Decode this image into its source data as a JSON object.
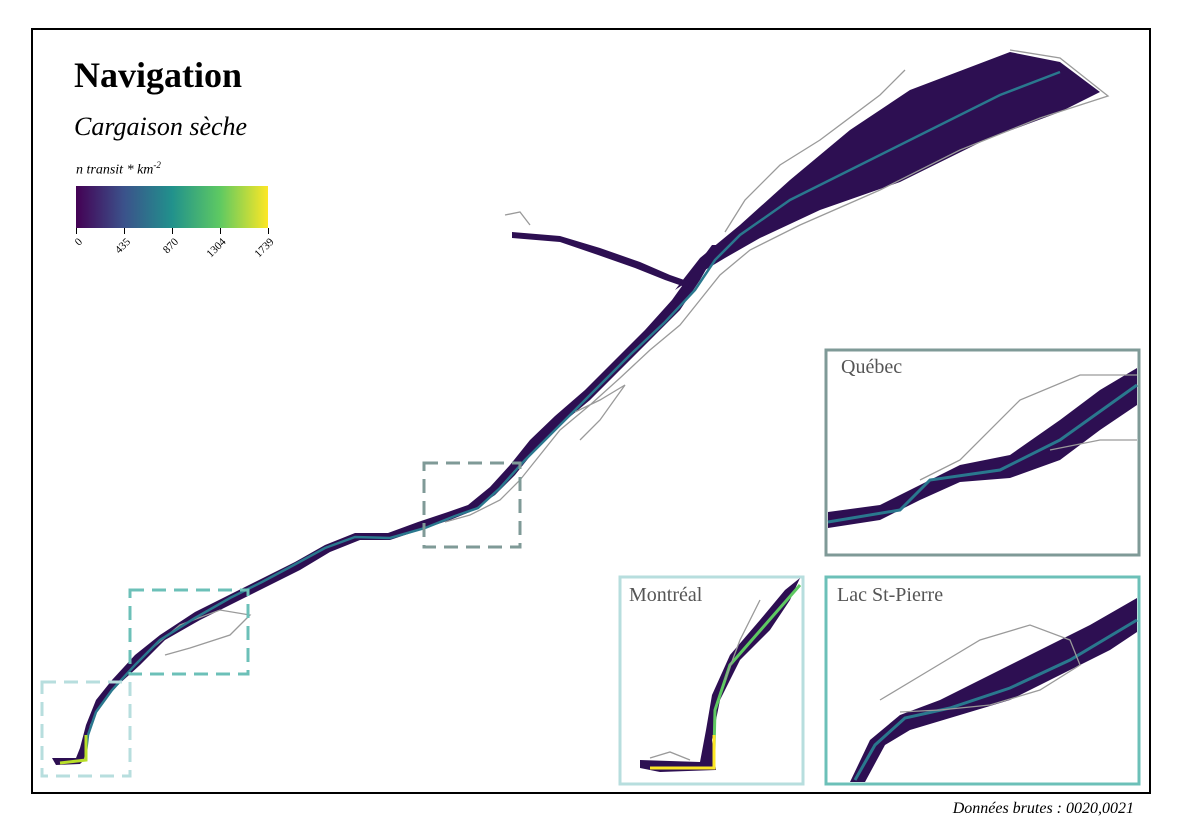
{
  "map": {
    "title": "Navigation",
    "subtitle": "Cargaison sèche",
    "legend": {
      "title": "n transit * km",
      "title_exponent": "-2",
      "ticks": [
        "0",
        "435",
        "870",
        "1304",
        "1739"
      ],
      "palette": [
        "#440154",
        "#3b528b",
        "#21918c",
        "#5ec962",
        "#fde725"
      ]
    },
    "insets": {
      "quebec": "Québec",
      "montreal": "Montréal",
      "lac_st_pierre": "Lac St-Pierre"
    },
    "source": "Données brutes : 0020,0021",
    "colors": {
      "density_low": "#2d0f52",
      "density_channel": "#2a788e",
      "density_high": "#b8de29",
      "coastline": "#9a9a9a",
      "inset_quebec_border": "#7f9a97",
      "inset_lacstpierre_border": "#6cc0b8",
      "inset_montreal_border": "#b7dede"
    }
  }
}
